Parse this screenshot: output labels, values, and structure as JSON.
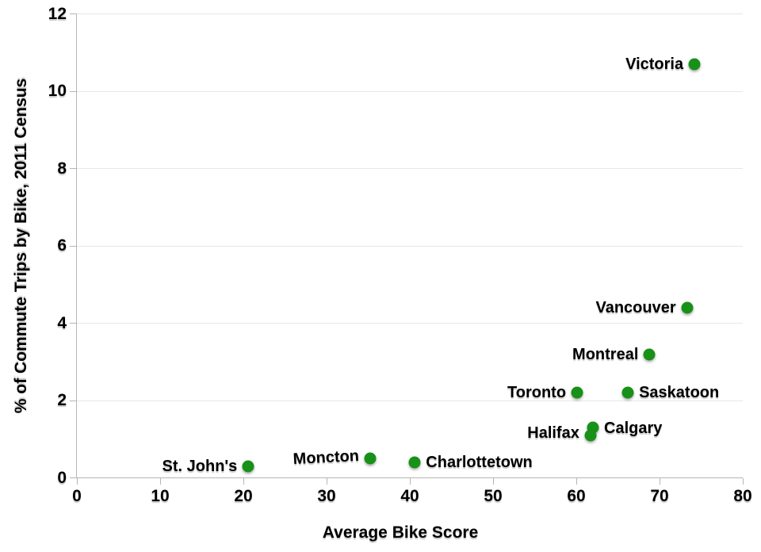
{
  "chart_data": {
    "type": "scatter",
    "title": "",
    "xlabel": "Average Bike Score",
    "ylabel": "% of Commute Trips by Bike, 2011 Census",
    "xlim": [
      0,
      80
    ],
    "ylim": [
      0,
      12
    ],
    "xticks": [
      0,
      10,
      20,
      30,
      40,
      50,
      60,
      70,
      80
    ],
    "yticks": [
      0,
      2,
      4,
      6,
      8,
      10,
      12
    ],
    "grid": "horizontal-only",
    "legend": "none",
    "point_color": "#179117",
    "axis_color": "#b5b5b5",
    "gridline_color": "#e7e7e7",
    "text_color": "#000000",
    "points": [
      {
        "label": "Victoria",
        "x": 74.2,
        "y": 10.7,
        "label_side": "left",
        "label_dy": 0,
        "label_tilt": 0
      },
      {
        "label": "Vancouver",
        "x": 73.3,
        "y": 4.4,
        "label_side": "left",
        "label_dy": 0,
        "label_tilt": 0
      },
      {
        "label": "Montreal",
        "x": 68.8,
        "y": 3.2,
        "label_side": "left",
        "label_dy": 0,
        "label_tilt": 0
      },
      {
        "label": "Saskatoon",
        "x": 66.2,
        "y": 2.2,
        "label_side": "right",
        "label_dy": 0,
        "label_tilt": 0
      },
      {
        "label": "Toronto",
        "x": 60.1,
        "y": 2.2,
        "label_side": "left",
        "label_dy": 0,
        "label_tilt": 0
      },
      {
        "label": "Calgary",
        "x": 62.0,
        "y": 1.3,
        "label_side": "right",
        "label_dy": 1,
        "label_tilt": 0
      },
      {
        "label": "Halifax",
        "x": 61.7,
        "y": 1.1,
        "label_side": "left",
        "label_dy": -3,
        "label_tilt": 0
      },
      {
        "label": "Charlottetown",
        "x": 40.6,
        "y": 0.4,
        "label_side": "right",
        "label_dy": 0,
        "label_tilt": 0
      },
      {
        "label": "Moncton",
        "x": 35.2,
        "y": 0.5,
        "label_side": "left",
        "label_dy": -1,
        "label_tilt": -3
      },
      {
        "label": "St. John's",
        "x": 20.6,
        "y": 0.3,
        "label_side": "left",
        "label_dy": 0,
        "label_tilt": 0
      }
    ]
  }
}
